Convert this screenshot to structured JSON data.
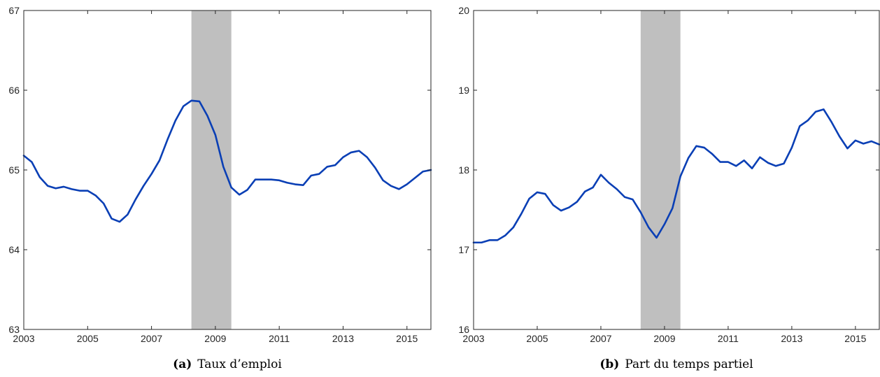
{
  "chart_data": [
    {
      "type": "line",
      "caption_letter": "(a)",
      "caption_text": "Taux d’emploi",
      "title": "",
      "xlabel": "",
      "ylabel": "",
      "xlim": [
        2003,
        2015.75
      ],
      "ylim": [
        63,
        67
      ],
      "x_ticks": [
        2003,
        2005,
        2007,
        2009,
        2011,
        2013,
        2015
      ],
      "y_ticks": [
        63,
        64,
        65,
        66,
        67
      ],
      "grid": false,
      "recession_band": [
        2008.25,
        2009.5
      ],
      "band_color": "#bfbfbf",
      "line_color": "#0a3fb5",
      "series": [
        {
          "x": [
            2003,
            2003.25,
            2003.5,
            2003.75,
            2004,
            2004.25,
            2004.5,
            2004.75,
            2005,
            2005.25,
            2005.5,
            2005.75,
            2006,
            2006.25,
            2006.5,
            2006.75,
            2007,
            2007.25,
            2007.5,
            2007.75,
            2008,
            2008.25,
            2008.5,
            2008.75,
            2009,
            2009.25,
            2009.5,
            2009.75,
            2010,
            2010.25,
            2010.5,
            2010.75,
            2011,
            2011.25,
            2011.5,
            2011.75,
            2012,
            2012.25,
            2012.5,
            2012.75,
            2013,
            2013.25,
            2013.5,
            2013.75,
            2014,
            2014.25,
            2014.5,
            2014.75,
            2015,
            2015.25,
            2015.5,
            2015.75
          ],
          "y": [
            65.18,
            65.1,
            64.91,
            64.8,
            64.77,
            64.79,
            64.76,
            64.74,
            64.74,
            64.68,
            64.58,
            64.39,
            64.35,
            64.44,
            64.63,
            64.8,
            64.95,
            65.12,
            65.38,
            65.62,
            65.8,
            65.87,
            65.86,
            65.68,
            65.44,
            65.04,
            64.78,
            64.69,
            64.75,
            64.88,
            64.88,
            64.88,
            64.87,
            64.84,
            64.82,
            64.81,
            64.93,
            64.95,
            65.04,
            65.06,
            65.16,
            65.22,
            65.24,
            65.16,
            65.03,
            64.87,
            64.8,
            64.76,
            64.82,
            64.9,
            64.98,
            65.0
          ]
        }
      ]
    },
    {
      "type": "line",
      "caption_letter": "(b)",
      "caption_text": "Part du temps partiel",
      "title": "",
      "xlabel": "",
      "ylabel": "",
      "xlim": [
        2003,
        2015.75
      ],
      "ylim": [
        16,
        20
      ],
      "x_ticks": [
        2003,
        2005,
        2007,
        2009,
        2011,
        2013,
        2015
      ],
      "y_ticks": [
        16,
        17,
        18,
        19,
        20
      ],
      "grid": false,
      "recession_band": [
        2008.25,
        2009.5
      ],
      "band_color": "#bfbfbf",
      "line_color": "#0a3fb5",
      "series": [
        {
          "x": [
            2003,
            2003.25,
            2003.5,
            2003.75,
            2004,
            2004.25,
            2004.5,
            2004.75,
            2005,
            2005.25,
            2005.5,
            2005.75,
            2006,
            2006.25,
            2006.5,
            2006.75,
            2007,
            2007.25,
            2007.5,
            2007.75,
            2008,
            2008.25,
            2008.5,
            2008.75,
            2009,
            2009.25,
            2009.5,
            2009.75,
            2010,
            2010.25,
            2010.5,
            2010.75,
            2011,
            2011.25,
            2011.5,
            2011.75,
            2012,
            2012.25,
            2012.5,
            2012.75,
            2013,
            2013.25,
            2013.5,
            2013.75,
            2014,
            2014.25,
            2014.5,
            2014.75,
            2015,
            2015.25,
            2015.5,
            2015.75
          ],
          "y": [
            17.09,
            17.09,
            17.12,
            17.12,
            17.18,
            17.28,
            17.45,
            17.64,
            17.72,
            17.7,
            17.56,
            17.49,
            17.53,
            17.6,
            17.73,
            17.78,
            17.94,
            17.84,
            17.76,
            17.66,
            17.63,
            17.47,
            17.28,
            17.15,
            17.32,
            17.52,
            17.92,
            18.15,
            18.3,
            18.28,
            18.2,
            18.1,
            18.1,
            18.05,
            18.12,
            18.02,
            18.16,
            18.09,
            18.05,
            18.08,
            18.28,
            18.55,
            18.62,
            18.73,
            18.76,
            18.6,
            18.42,
            18.27,
            18.37,
            18.33,
            18.36,
            18.32
          ]
        }
      ]
    }
  ]
}
